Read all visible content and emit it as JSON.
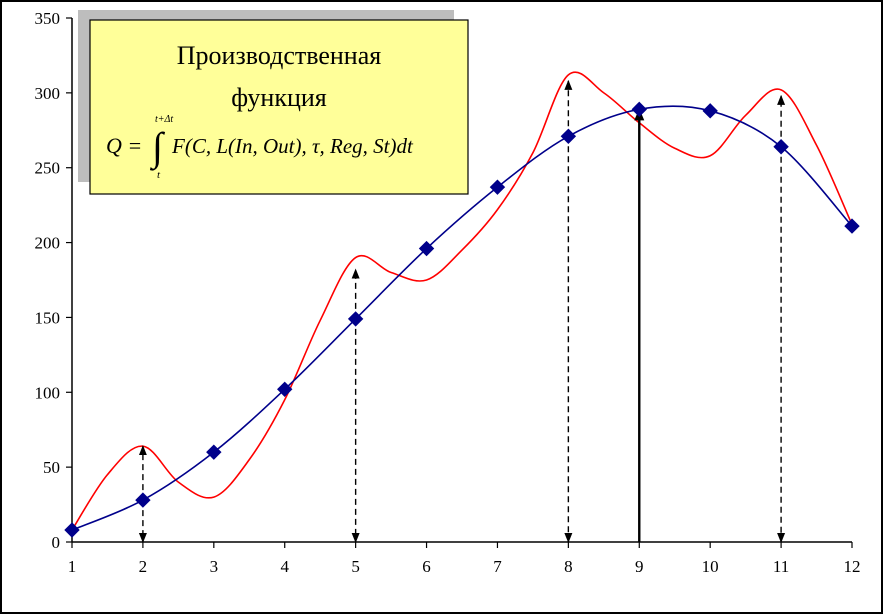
{
  "chart_data": {
    "type": "line",
    "title": "Производственная функция",
    "formula": "Q = ∫ F(C, L(In, Out), τ, Reg, St) dt",
    "formula_upper": "t+Δt",
    "formula_lower": "t",
    "x_ticks": [
      "1",
      "2",
      "3",
      "4",
      "5",
      "6",
      "7",
      "8",
      "9",
      "10",
      "11",
      "12"
    ],
    "y_ticks": [
      "0",
      "50",
      "100",
      "150",
      "200",
      "250",
      "300",
      "350"
    ],
    "xlim": [
      1,
      12
    ],
    "ylim": [
      0,
      350
    ],
    "grid": false,
    "series": [
      {
        "x": [
          1,
          2,
          3,
          4,
          5,
          6,
          7,
          8,
          9,
          10,
          11,
          12
        ],
        "values": [
          8,
          28,
          60,
          102,
          149,
          196,
          237,
          271,
          289,
          288,
          264,
          211
        ],
        "color": "#00008b",
        "marker": "diamond"
      },
      {
        "x": [
          1,
          1.5,
          2,
          2.5,
          3,
          3.5,
          4,
          4.5,
          5,
          5.5,
          6,
          6.5,
          7,
          7.5,
          8,
          8.5,
          9,
          9.5,
          10,
          10.5,
          11,
          11.5,
          12
        ],
        "values": [
          8,
          45,
          64,
          40,
          30,
          55,
          95,
          148,
          190,
          180,
          175,
          195,
          222,
          260,
          312,
          300,
          280,
          263,
          258,
          285,
          302,
          265,
          212
        ],
        "color": "#ff0000",
        "marker": "none"
      }
    ],
    "arrows": [
      {
        "x": 2,
        "from": 28,
        "to": 64,
        "style": "dashed"
      },
      {
        "x": 2,
        "from": 28,
        "to": 0,
        "style": "dashed"
      },
      {
        "x": 5,
        "from": 149,
        "to": 182,
        "style": "dashed"
      },
      {
        "x": 5,
        "from": 149,
        "to": 0,
        "style": "dashed"
      },
      {
        "x": 8,
        "from": 271,
        "to": 308,
        "style": "dashed"
      },
      {
        "x": 8,
        "from": 271,
        "to": 0,
        "style": "dashed"
      },
      {
        "x": 9,
        "from": 0,
        "to": 289,
        "style": "solid"
      },
      {
        "x": 11,
        "from": 264,
        "to": 298,
        "style": "dashed"
      },
      {
        "x": 11,
        "from": 264,
        "to": 0,
        "style": "dashed"
      }
    ],
    "colors": {
      "title_box": "#ffff99",
      "title_shadow": "#bdbdbd",
      "frame": "#000000"
    }
  }
}
